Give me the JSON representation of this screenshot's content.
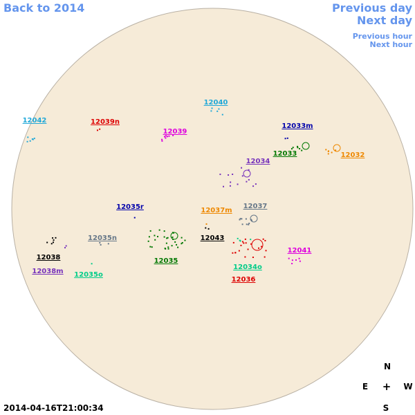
{
  "nav": {
    "back": "Back to 2014",
    "previous_day": "Previous day",
    "next_day": "Next day",
    "previous_hour": "Previous hour",
    "next_hour": "Next hour"
  },
  "regions": [
    "12042",
    "12039n",
    "12040",
    "12039",
    "12033m",
    "12033",
    "12032",
    "12034",
    "12035r",
    "12037m",
    "12037",
    "12043",
    "12035n",
    "12038",
    "12035",
    "12034o",
    "12041",
    "12038m",
    "12035o",
    "12036"
  ],
  "compass": {
    "north": "N",
    "east": "E",
    "center": "+",
    "west": "W",
    "south": "S"
  },
  "timestamp": "2014-04-16T21:00:34"
}
